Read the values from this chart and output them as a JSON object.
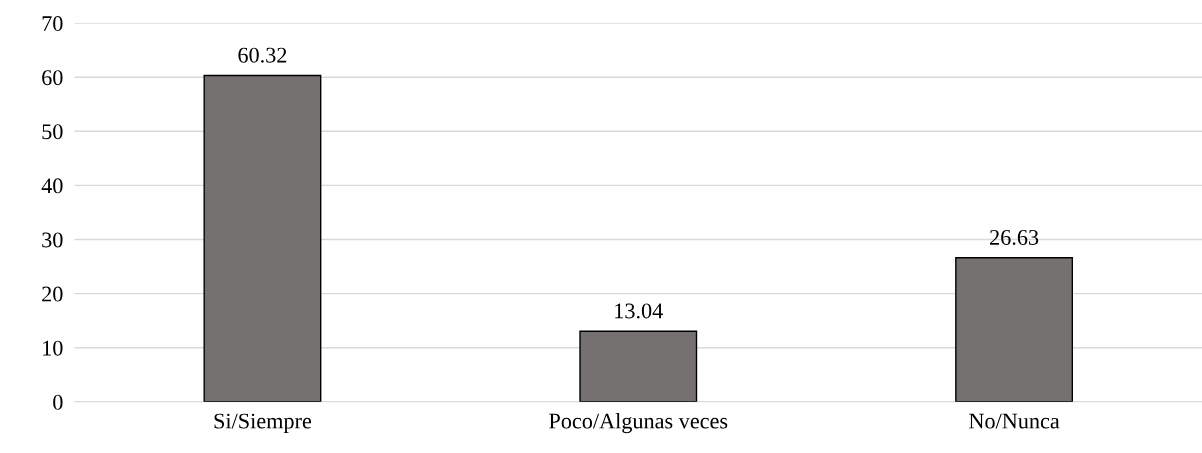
{
  "chart_data": {
    "type": "bar",
    "categories": [
      "Si/Siempre",
      "Poco/Algunas veces",
      "No/Nunca"
    ],
    "values": [
      60.32,
      13.04,
      26.63
    ],
    "color": "#767171",
    "ylim": [
      0,
      70
    ],
    "yticks": [
      0,
      10,
      20,
      30,
      40,
      50,
      60,
      70
    ],
    "grid": "y",
    "data_labels": true
  }
}
